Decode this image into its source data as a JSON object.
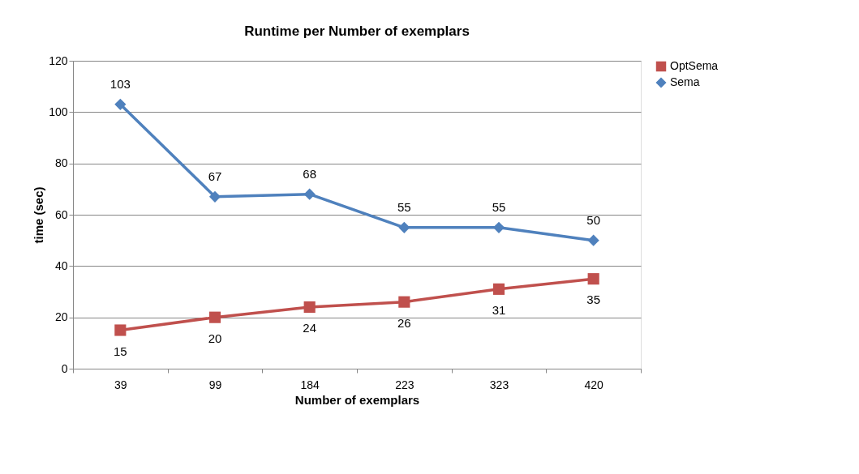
{
  "chart_data": {
    "type": "line",
    "title": "Runtime per Number of exemplars",
    "xlabel": "Number of exemplars",
    "ylabel": "time (sec)",
    "categories": [
      "39",
      "99",
      "184",
      "223",
      "323",
      "420"
    ],
    "series": [
      {
        "name": "OptSema",
        "color": "#c0504d",
        "marker": "square",
        "values": [
          15,
          20,
          24,
          26,
          31,
          35
        ]
      },
      {
        "name": "Sema",
        "color": "#4f81bd",
        "marker": "diamond",
        "values": [
          103,
          67,
          68,
          55,
          55,
          50
        ]
      }
    ],
    "ylim": [
      0,
      120
    ],
    "yticks": [
      0,
      20,
      40,
      60,
      80,
      100,
      120
    ],
    "grid": "y",
    "legend": "right",
    "data_labels": true,
    "line_style": "solid"
  }
}
